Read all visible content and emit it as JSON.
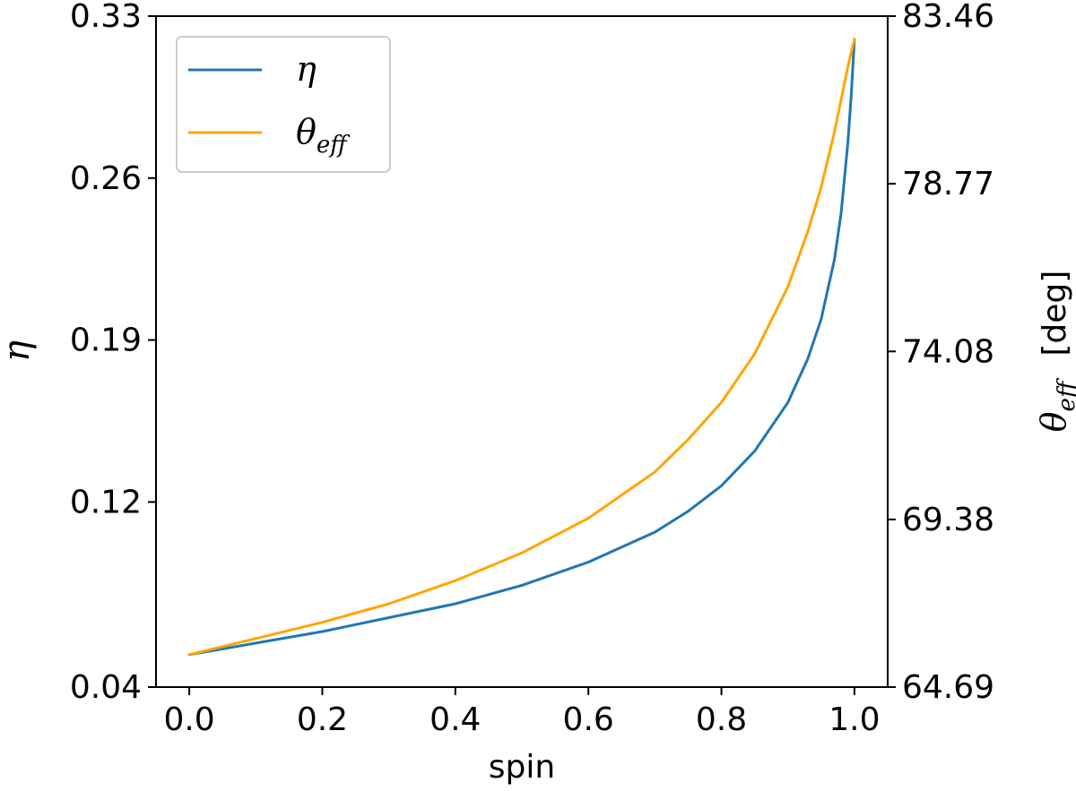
{
  "chart_data": {
    "type": "line",
    "xlabel": "spin",
    "ylabel_left": "η",
    "ylabel_right_symbol": "θ",
    "ylabel_right_subscript": "eff",
    "ylabel_right_unit": "[deg]",
    "xlim": [
      -0.05,
      1.05
    ],
    "ylim_left": [
      0.04,
      0.33
    ],
    "ylim_right": [
      64.69,
      83.46
    ],
    "x_ticks": [
      "0.0",
      "0.2",
      "0.4",
      "0.6",
      "0.8",
      "1.0"
    ],
    "y_left_ticks": [
      "0.04",
      "0.12",
      "0.19",
      "0.26",
      "0.33"
    ],
    "y_right_ticks": [
      "64.69",
      "69.38",
      "74.08",
      "78.77",
      "83.46"
    ],
    "legend_position": "top-left",
    "grid": false,
    "series": [
      {
        "name": "η",
        "axis": "left",
        "color": "#1f77b4",
        "x": [
          0.0,
          0.1,
          0.2,
          0.3,
          0.4,
          0.5,
          0.6,
          0.7,
          0.75,
          0.8,
          0.85,
          0.9,
          0.93,
          0.95,
          0.97,
          0.98,
          0.99,
          0.995,
          1.0
        ],
        "y": [
          0.054,
          0.059,
          0.064,
          0.07,
          0.076,
          0.084,
          0.094,
          0.107,
          0.116,
          0.127,
          0.142,
          0.163,
          0.182,
          0.199,
          0.225,
          0.245,
          0.275,
          0.295,
          0.32
        ]
      },
      {
        "name": "θeff",
        "name_symbol": "θ",
        "name_subscript": "eff",
        "axis": "left",
        "color": "#ffa500",
        "x": [
          0.0,
          0.1,
          0.2,
          0.3,
          0.4,
          0.5,
          0.6,
          0.7,
          0.75,
          0.8,
          0.85,
          0.9,
          0.93,
          0.95,
          0.97,
          0.98,
          0.99,
          1.0
        ],
        "y": [
          0.054,
          0.061,
          0.068,
          0.076,
          0.086,
          0.098,
          0.113,
          0.133,
          0.147,
          0.163,
          0.184,
          0.213,
          0.237,
          0.256,
          0.28,
          0.294,
          0.308,
          0.32
        ]
      }
    ]
  }
}
